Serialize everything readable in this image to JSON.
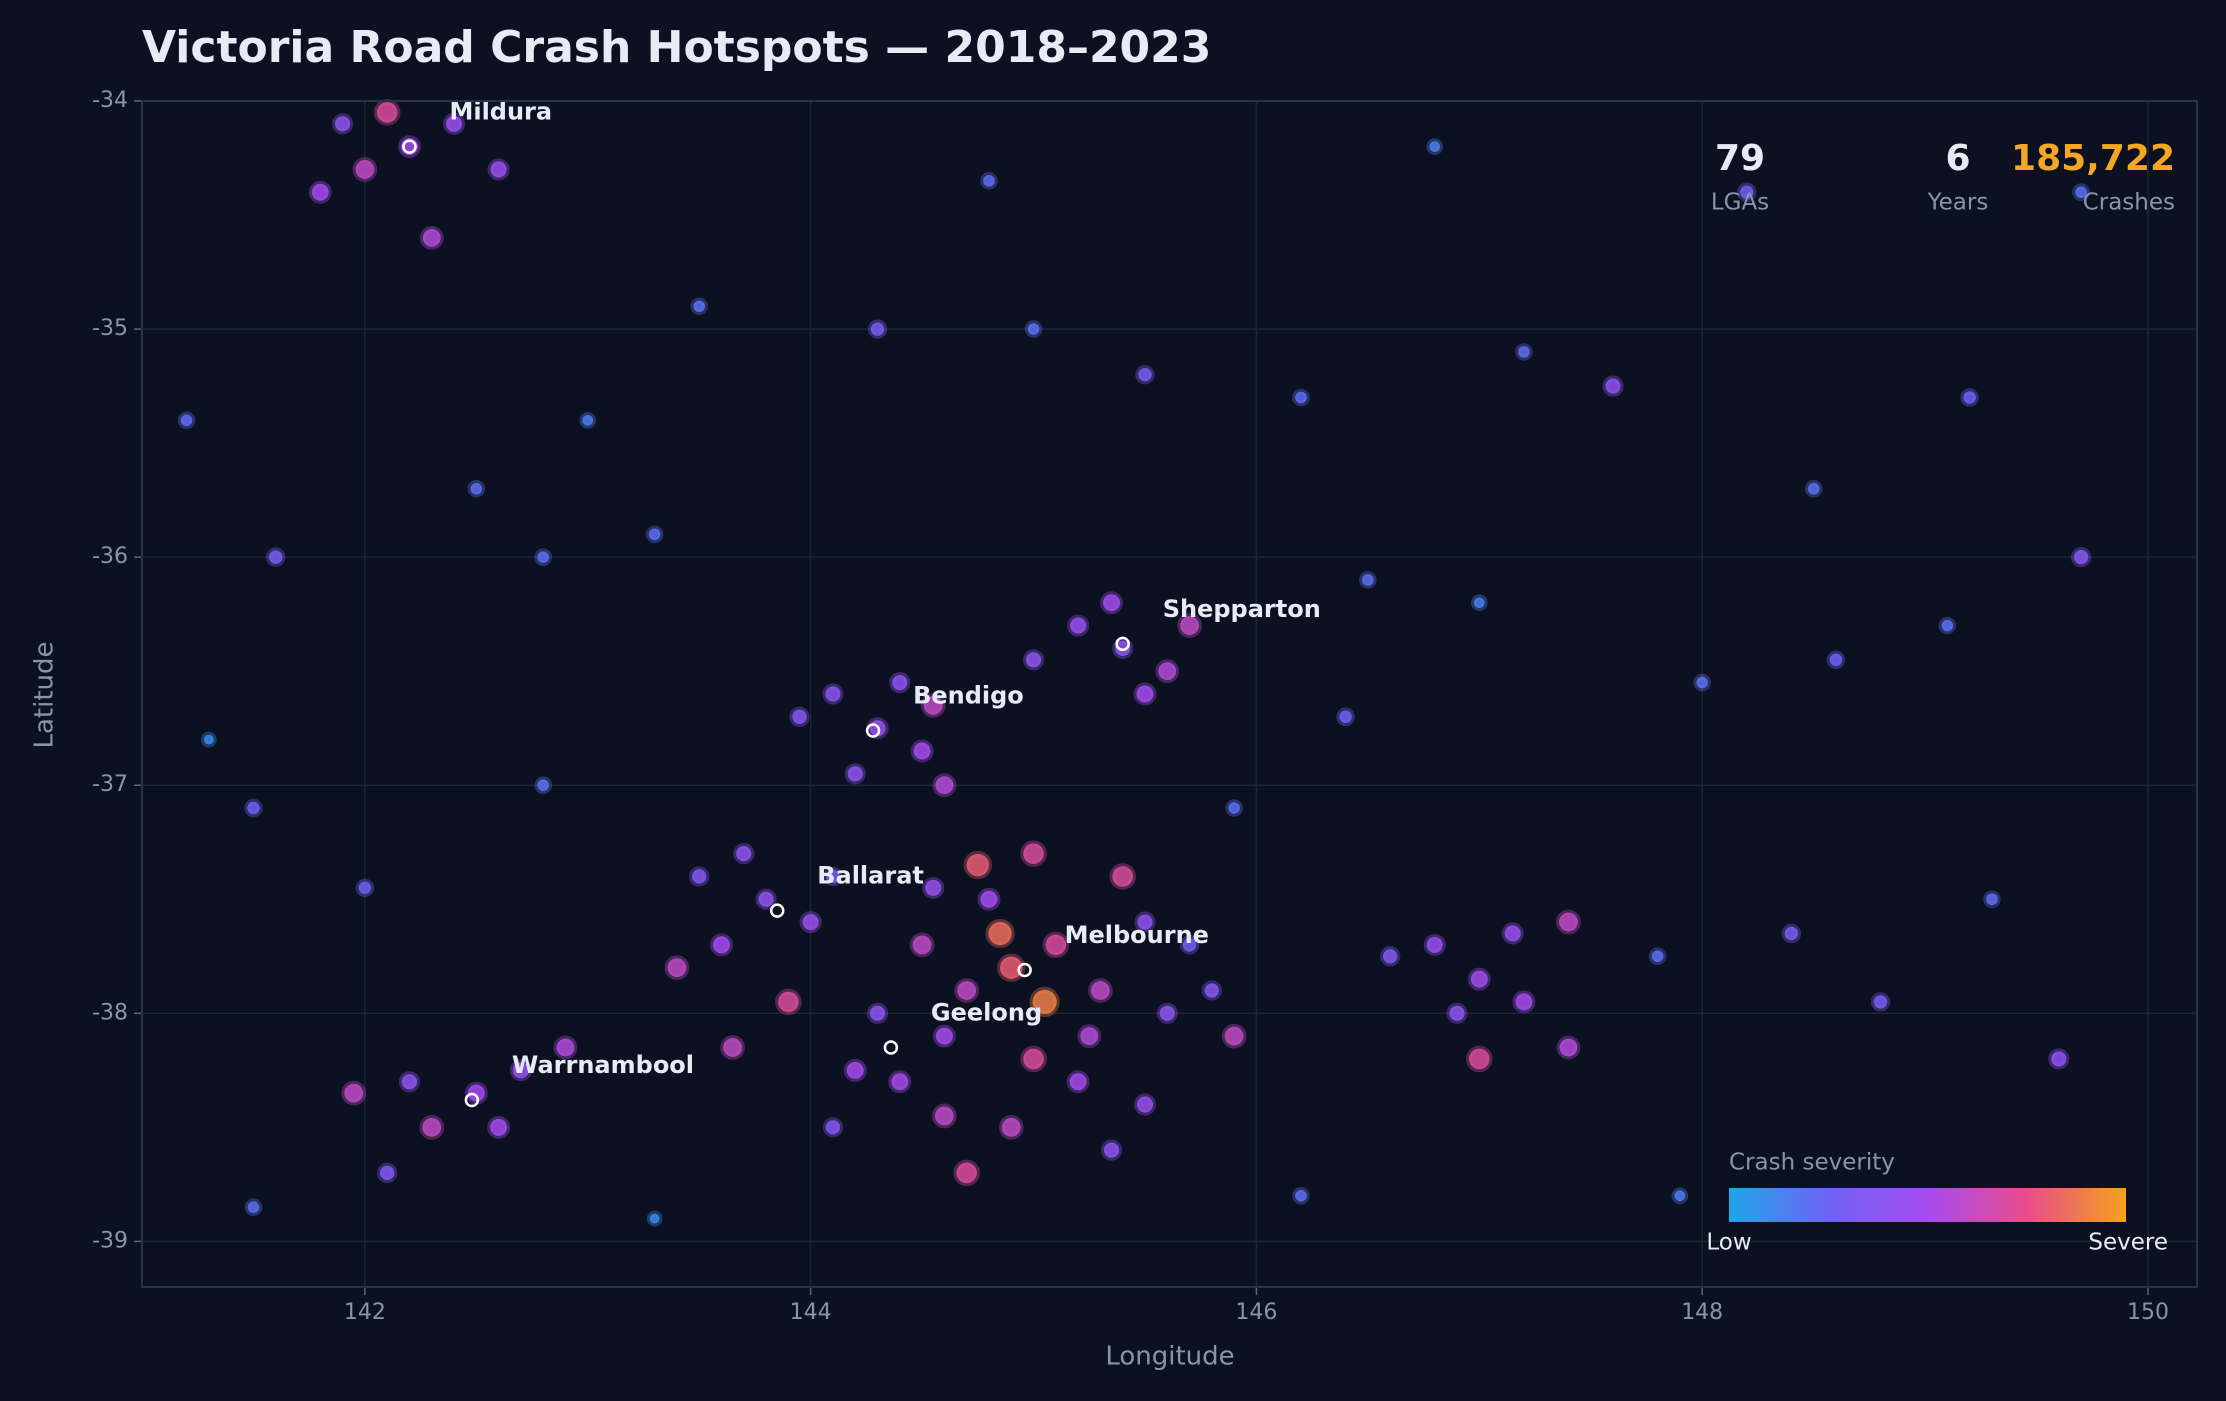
{
  "chart_data": {
    "type": "scatter",
    "title": "Victoria Road Crash Hotspots — 2018–2023",
    "x_label": "Longitude",
    "y_label": "Latitude",
    "xlim": [
      141,
      150.22
    ],
    "ylim": [
      -39.2,
      -34
    ],
    "xticks": [
      142,
      144,
      146,
      148,
      150
    ],
    "yticks": [
      -34,
      -35,
      -36,
      -37,
      -38,
      -39
    ],
    "grid": true,
    "colorscale": [
      "#1fa6e8",
      "#6f63f5",
      "#a64cf0",
      "#e84c8a",
      "#f5a21d"
    ],
    "colorbar": {
      "title": "Crash severity",
      "low": "Low",
      "high": "Severe"
    },
    "x": [
      144.9,
      145.1,
      144.7,
      144.6,
      145.3,
      145.5,
      144.8,
      145.0,
      144.5,
      145.2,
      145.6,
      144.4,
      144.3,
      145.4,
      144.75,
      145.7,
      144.9,
      144.7,
      145.05,
      144.85,
      145.25,
      144.55,
      145.8,
      145.9,
      144.2,
      145.5,
      145.35,
      144.1,
      145.0,
      144.6,
      143.8,
      143.6,
      143.5,
      144.0,
      143.7,
      143.4,
      143.9,
      143.65,
      144.1,
      144.3,
      144.1,
      144.5,
      144.2,
      143.95,
      144.6,
      144.4,
      144.55,
      145.4,
      145.2,
      145.6,
      145.0,
      145.35,
      145.7,
      145.5,
      142.2,
      142.0,
      142.4,
      141.9,
      142.3,
      142.6,
      141.8,
      142.1,
      142.5,
      142.3,
      142.7,
      142.2,
      142.6,
      142.9,
      141.95,
      142.1,
      147.0,
      146.8,
      147.2,
      146.9,
      147.4,
      147.0,
      147.4,
      146.6,
      147.15,
      141.2,
      141.6,
      141.3,
      142.5,
      143.0,
      143.5,
      144.3,
      145.0,
      145.5,
      146.2,
      146.5,
      147.0,
      147.6,
      148.0,
      148.6,
      149.1,
      149.7,
      148.8,
      149.6,
      148.4,
      149.3,
      147.8,
      146.2,
      143.3,
      142.8,
      141.5,
      142.0,
      148.2,
      149.7,
      146.8,
      144.8,
      143.3,
      141.5,
      147.9,
      148.5,
      149.2,
      145.9,
      146.4,
      142.8,
      147.2
    ],
    "y": [
      -37.8,
      -37.7,
      -37.9,
      -38.1,
      -37.9,
      -37.6,
      -37.5,
      -38.2,
      -37.7,
      -38.3,
      -38.0,
      -38.3,
      -38.0,
      -37.4,
      -37.35,
      -37.7,
      -38.5,
      -38.7,
      -37.95,
      -37.65,
      -38.1,
      -37.45,
      -37.9,
      -38.1,
      -38.25,
      -38.4,
      -38.6,
      -38.5,
      -37.3,
      -38.45,
      -37.5,
      -37.7,
      -37.4,
      -37.6,
      -37.3,
      -37.8,
      -37.95,
      -38.15,
      -37.4,
      -36.75,
      -36.6,
      -36.85,
      -36.95,
      -36.7,
      -37.0,
      -36.55,
      -36.65,
      -36.4,
      -36.3,
      -36.5,
      -36.45,
      -36.2,
      -36.3,
      -36.6,
      -34.2,
      -34.3,
      -34.1,
      -34.1,
      -34.6,
      -34.3,
      -34.4,
      -34.05,
      -38.35,
      -38.5,
      -38.25,
      -38.3,
      -38.5,
      -38.15,
      -38.35,
      -38.7,
      -37.85,
      -37.7,
      -37.95,
      -38.0,
      -37.6,
      -38.2,
      -38.15,
      -37.75,
      -37.65,
      -35.4,
      -36.0,
      -36.8,
      -35.7,
      -35.4,
      -34.9,
      -35.0,
      -35.0,
      -35.2,
      -35.3,
      -36.1,
      -36.2,
      -35.25,
      -36.55,
      -36.45,
      -36.3,
      -36.0,
      -37.95,
      -38.2,
      -37.65,
      -37.5,
      -37.75,
      -38.8,
      -38.9,
      -37.0,
      -37.1,
      -37.45,
      -34.4,
      -34.4,
      -34.2,
      -34.35,
      -35.9,
      -38.85,
      -38.8,
      -35.7,
      -35.3,
      -37.1,
      -36.7,
      -36.0,
      -35.1
    ],
    "severity": [
      0.8,
      0.7,
      0.6,
      0.5,
      0.6,
      0.4,
      0.5,
      0.7,
      0.6,
      0.5,
      0.4,
      0.5,
      0.4,
      0.7,
      0.8,
      0.3,
      0.6,
      0.7,
      0.9,
      0.85,
      0.55,
      0.45,
      0.35,
      0.6,
      0.5,
      0.45,
      0.4,
      0.35,
      0.7,
      0.6,
      0.4,
      0.5,
      0.35,
      0.45,
      0.4,
      0.6,
      0.7,
      0.6,
      0.3,
      0.45,
      0.4,
      0.5,
      0.4,
      0.35,
      0.55,
      0.4,
      0.6,
      0.4,
      0.45,
      0.55,
      0.4,
      0.5,
      0.6,
      0.5,
      0.5,
      0.6,
      0.45,
      0.4,
      0.55,
      0.45,
      0.5,
      0.7,
      0.5,
      0.6,
      0.45,
      0.4,
      0.5,
      0.55,
      0.6,
      0.35,
      0.5,
      0.45,
      0.5,
      0.4,
      0.6,
      0.7,
      0.55,
      0.35,
      0.45,
      0.2,
      0.3,
      0.1,
      0.2,
      0.15,
      0.2,
      0.3,
      0.2,
      0.3,
      0.2,
      0.2,
      0.15,
      0.4,
      0.2,
      0.25,
      0.2,
      0.35,
      0.3,
      0.4,
      0.3,
      0.2,
      0.2,
      0.2,
      0.1,
      0.2,
      0.25,
      0.25,
      0.3,
      0.2,
      0.15,
      0.2,
      0.2,
      0.2,
      0.15,
      0.2,
      0.25,
      0.2,
      0.25,
      0.2,
      0.2
    ],
    "cities": [
      {
        "name": "Mildura",
        "x": 142.2,
        "y": -34.2
      },
      {
        "name": "Shepparton",
        "x": 145.4,
        "y": -36.38
      },
      {
        "name": "Bendigo",
        "x": 144.28,
        "y": -36.76
      },
      {
        "name": "Ballarat",
        "x": 143.85,
        "y": -37.55
      },
      {
        "name": "Melbourne",
        "x": 144.96,
        "y": -37.81
      },
      {
        "name": "Geelong",
        "x": 144.36,
        "y": -38.15
      },
      {
        "name": "Warrnambool",
        "x": 142.48,
        "y": -38.38
      }
    ],
    "stats": [
      {
        "value": 79,
        "label": "LGAs"
      },
      {
        "value": 6,
        "label": "Years"
      },
      {
        "value": 185722,
        "value_label": "185,722",
        "label": "Crashes",
        "color": "#f5a623"
      }
    ]
  }
}
